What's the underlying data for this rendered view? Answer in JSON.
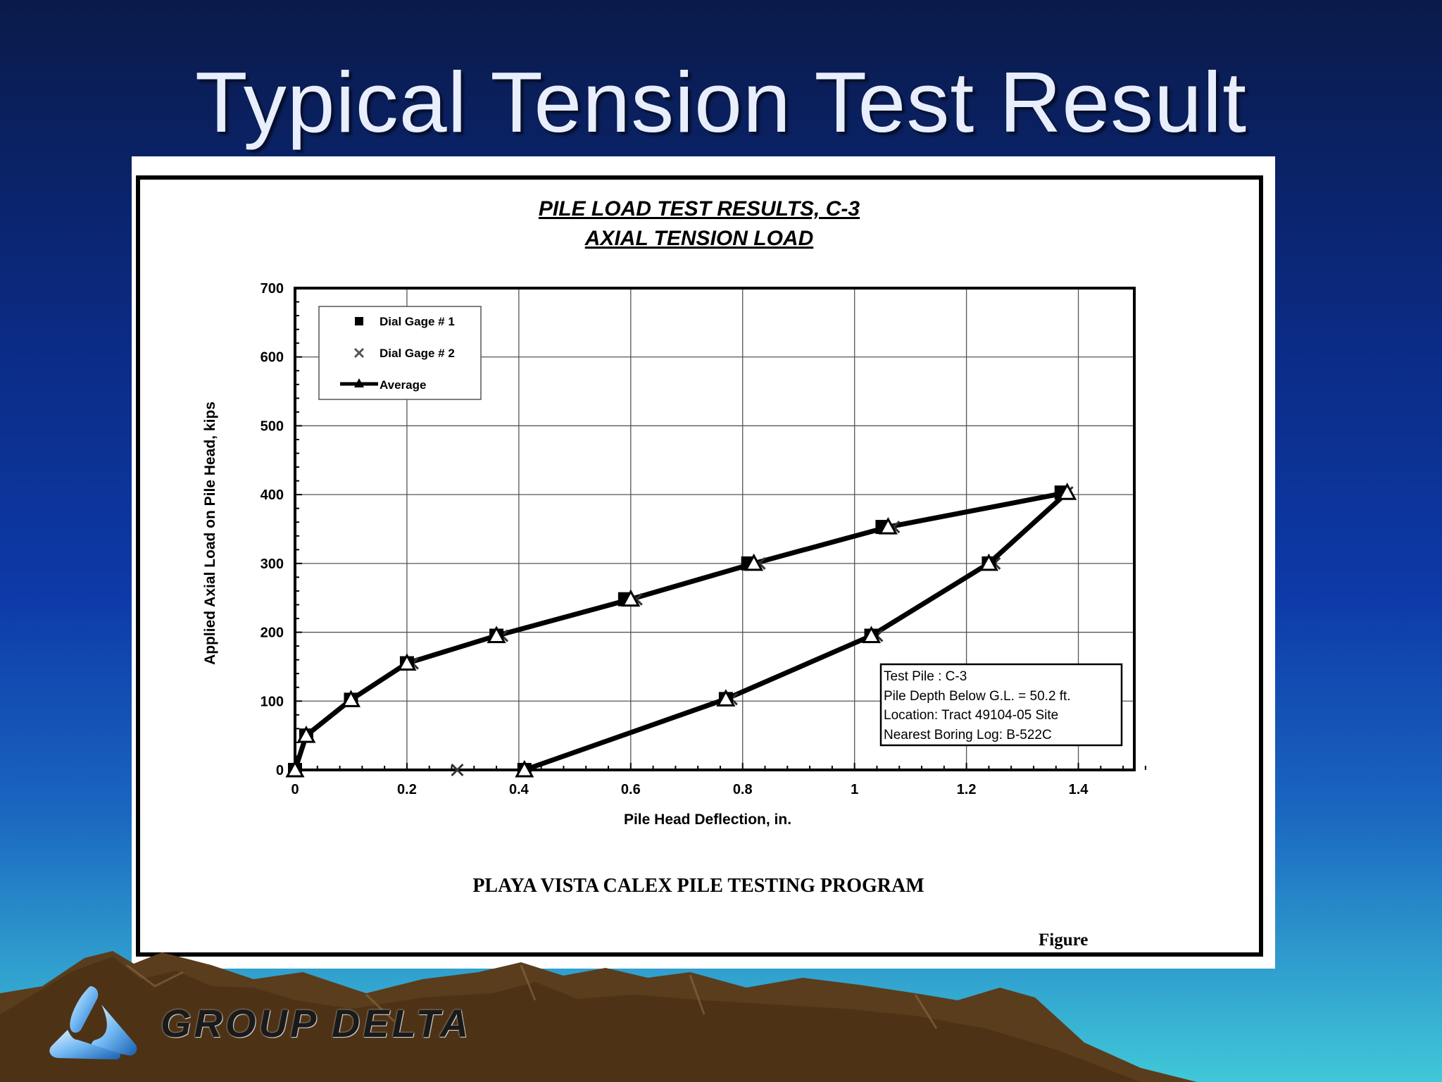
{
  "slide": {
    "title": "Typical Tension Test Result"
  },
  "brand": {
    "name": "GROUP DELTA"
  },
  "chart_data": {
    "type": "line",
    "title": "PILE LOAD TEST RESULTS, C-3",
    "subtitle": "AXIAL TENSION LOAD",
    "xlabel": "Pile Head Deflection, in.",
    "ylabel": "Applied Axial Load on Pile Head,  kips",
    "xlim": [
      0,
      1.5
    ],
    "ylim": [
      0,
      700
    ],
    "xticks": [
      0,
      0.2,
      0.4,
      0.6,
      0.8,
      1,
      1.2,
      1.4
    ],
    "xtick_labels": [
      "0",
      "0.2",
      "0.4",
      "0.6",
      "0.8",
      "1",
      "1.2",
      "1.4"
    ],
    "yticks": [
      0,
      100,
      200,
      300,
      400,
      500,
      600,
      700
    ],
    "ytick_labels": [
      "0",
      "100",
      "200",
      "300",
      "400",
      "500",
      "600",
      "700"
    ],
    "grid": true,
    "legend_position": "top-left",
    "series": [
      {
        "name": "Dial Gage # 1",
        "marker": "square",
        "x": [
          0,
          0.02,
          0.1,
          0.2,
          0.36,
          0.59,
          0.81,
          1.05,
          1.37,
          1.24,
          1.03,
          0.77,
          0.41
        ],
        "y": [
          0,
          50,
          102,
          155,
          195,
          248,
          300,
          353,
          403,
          300,
          195,
          103,
          0
        ]
      },
      {
        "name": "Dial Gage # 2",
        "marker": "x",
        "x": [
          0,
          0.02,
          0.1,
          0.21,
          0.37,
          0.61,
          0.83,
          1.07,
          1.38,
          1.25,
          1.04,
          0.78,
          0.29,
          0.41
        ],
        "y": [
          0,
          50,
          102,
          155,
          195,
          248,
          300,
          353,
          403,
          300,
          195,
          103,
          0,
          0
        ]
      },
      {
        "name": "Average",
        "marker": "triangle",
        "x": [
          0,
          0.02,
          0.1,
          0.2,
          0.36,
          0.6,
          0.82,
          1.06,
          1.38,
          1.24,
          1.03,
          0.77,
          0.41
        ],
        "y": [
          0,
          50,
          102,
          155,
          195,
          248,
          300,
          353,
          403,
          300,
          195,
          103,
          0
        ]
      }
    ],
    "info_box": [
      "Test Pile : C-3",
      "Pile Depth Below G.L. = 50.2 ft.",
      "Location: Tract 49104-05 Site",
      "Nearest Boring Log: B-522C"
    ],
    "program_label": "PLAYA VISTA CALEX PILE TESTING PROGRAM",
    "figure_label": "Figure"
  }
}
